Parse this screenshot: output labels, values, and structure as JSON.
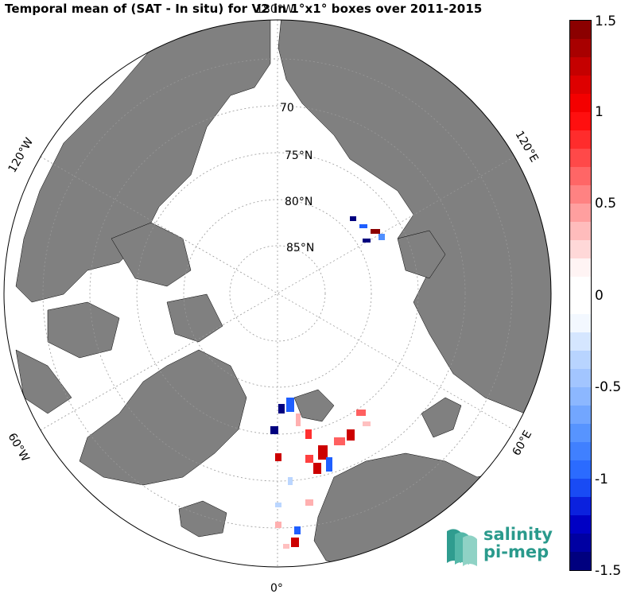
{
  "title": "Temporal mean of (SAT - In situ) for V2 in 1°x1° boxes over 2011-2015",
  "map": {
    "projection": "north polar stereographic",
    "lon_labels": [
      "180°W",
      "120°W",
      "60°W",
      "0°",
      "60°E",
      "120°E"
    ],
    "lat_labels": [
      "70",
      "75°N",
      "80°N",
      "85°N"
    ],
    "colors": {
      "land": "#808080",
      "ocean": "#ffffff",
      "grid": "#999999"
    }
  },
  "colorbar": {
    "ticks": [
      "1.5",
      "1",
      "0.5",
      "0",
      "-0.5",
      "-1",
      "-1.5"
    ],
    "vmin": -1.5,
    "vmax": 1.5,
    "colormap": "blue-white-red"
  },
  "logo": {
    "line1": "salinity",
    "line2": "pi-mep"
  }
}
